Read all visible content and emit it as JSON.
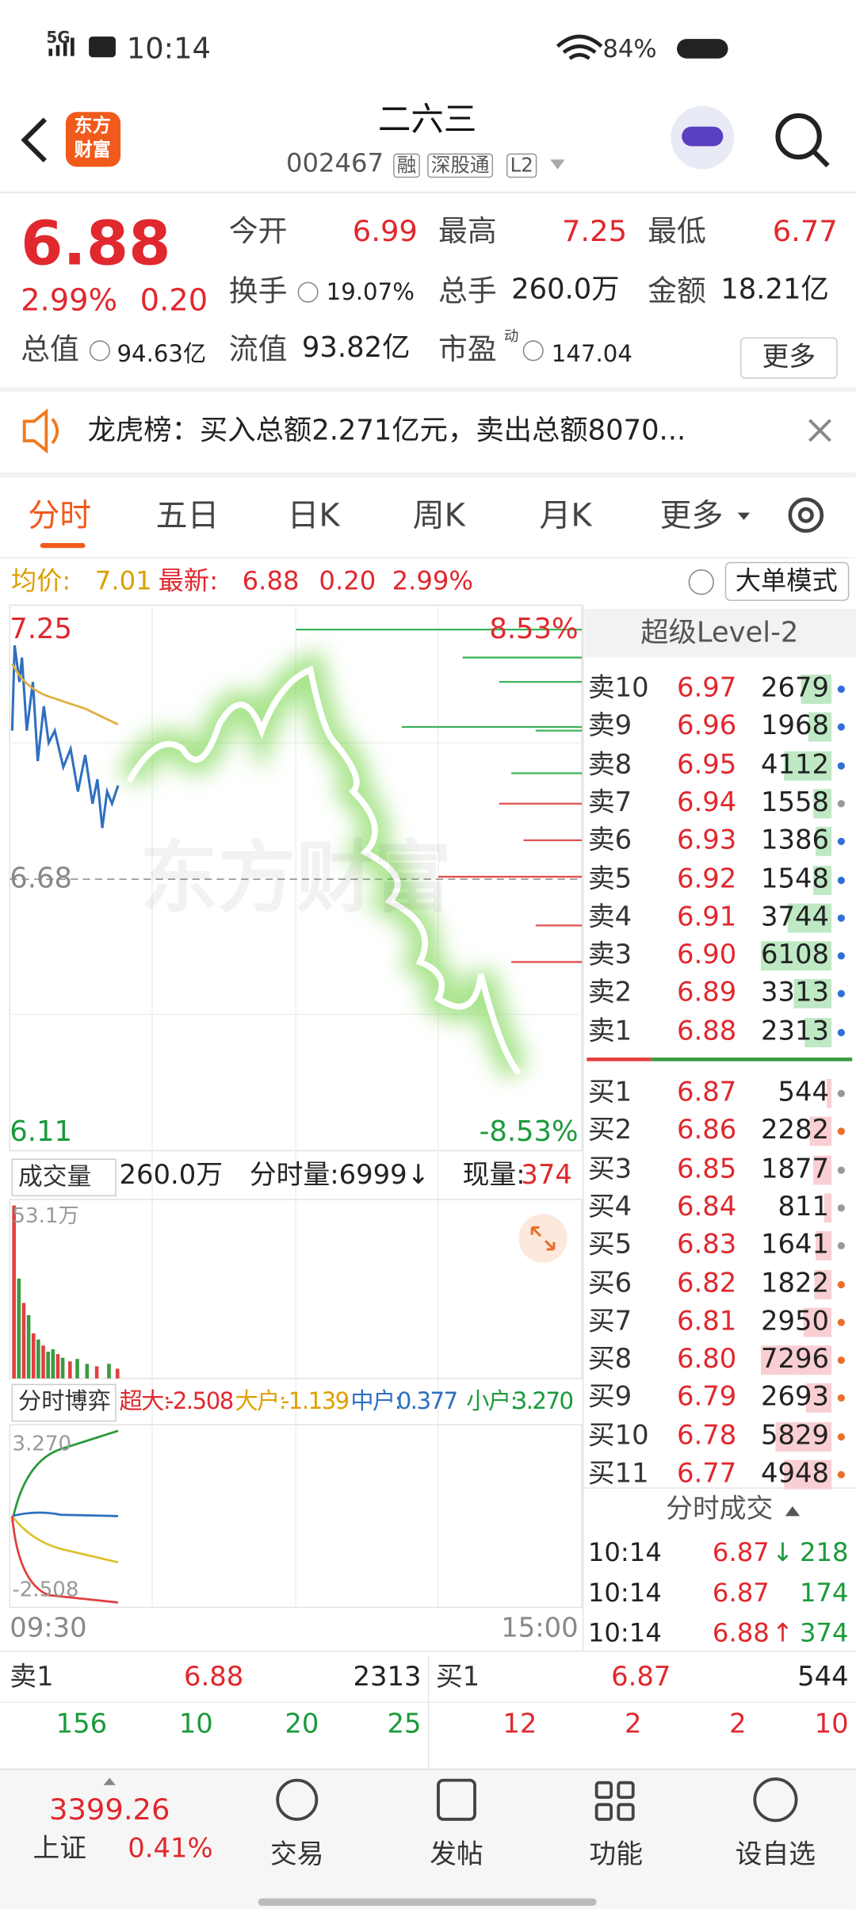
{
  "status_bar": {
    "network": "5G",
    "time": "10:14",
    "battery": "84%"
  },
  "header": {
    "logo_top": "东方",
    "logo_bottom": "财富",
    "title": "二六三",
    "code": "002467",
    "tags": [
      "融",
      "深股通",
      "L2"
    ]
  },
  "quote": {
    "price": "6.88",
    "change_pct": "2.99%",
    "change": "0.20",
    "fields": [
      {
        "label": "今开",
        "value": "6.99"
      },
      {
        "label": "最高",
        "value": "7.25"
      },
      {
        "label": "最低",
        "value": "6.77"
      },
      {
        "label": "换手",
        "value": "19.07%"
      },
      {
        "label": "总手",
        "value": "260.0万"
      },
      {
        "label": "金额",
        "value": "18.21亿"
      },
      {
        "label": "总值",
        "value": "94.63亿"
      },
      {
        "label": "流值",
        "value": "93.82亿"
      },
      {
        "label": "市盈",
        "sup": "动",
        "value": "147.04"
      }
    ],
    "more": "更多"
  },
  "banner": {
    "text": "龙虎榜：买入总额2.271亿元，卖出总额8070..."
  },
  "tabs": [
    "分时",
    "五日",
    "日K",
    "周K",
    "月K",
    "更多"
  ],
  "info_bar": {
    "avg_label": "均价:",
    "avg": "7.01",
    "latest_label": "最新:",
    "latest": "6.88",
    "change": "0.20",
    "change_pct": "2.99%",
    "mode": "大单模式"
  },
  "price_chart": {
    "high": "7.25",
    "high_pct": "8.53%",
    "prev_close": "6.68",
    "low": "6.11",
    "low_pct": "-8.53%",
    "watermark": "东方财富"
  },
  "volume_bar": {
    "selector": "成交量",
    "total": "260.0万",
    "tick_volume": "分时量:6999↓",
    "current_label": "现量:",
    "current": "374"
  },
  "volume_chart": {
    "max": "53.1万"
  },
  "flow_bar": {
    "selector": "分时博弈",
    "items": [
      {
        "label": "超大:",
        "value": "-2.508"
      },
      {
        "label": "大户:",
        "value": "-1.139"
      },
      {
        "label": "中户:",
        "value": "0.377"
      },
      {
        "label": "小户:",
        "value": "3.270"
      }
    ]
  },
  "flow_chart": {
    "max": "3.270",
    "min": "-2.508"
  },
  "time_axis": [
    "09:30",
    "15:00"
  ],
  "level2": {
    "title": "超级Level-2",
    "asks": [
      {
        "label": "卖10",
        "price": "6.97",
        "volume": 2679,
        "dot": "#2f6fd6"
      },
      {
        "label": "卖9",
        "price": "6.96",
        "volume": 1968,
        "dot": "#2f6fd6"
      },
      {
        "label": "卖8",
        "price": "6.95",
        "volume": 4112,
        "dot": "#2f6fd6"
      },
      {
        "label": "卖7",
        "price": "6.94",
        "volume": 1558,
        "dot": "#999999"
      },
      {
        "label": "卖6",
        "price": "6.93",
        "volume": 1386,
        "dot": "#2f6fd6"
      },
      {
        "label": "卖5",
        "price": "6.92",
        "volume": 1548,
        "dot": "#2f6fd6"
      },
      {
        "label": "卖4",
        "price": "6.91",
        "volume": 3744,
        "dot": "#2f6fd6"
      },
      {
        "label": "卖3",
        "price": "6.90",
        "volume": 6108,
        "dot": "#2f6fd6"
      },
      {
        "label": "卖2",
        "price": "6.89",
        "volume": 3313,
        "dot": "#2f6fd6"
      },
      {
        "label": "卖1",
        "price": "6.88",
        "volume": 2313,
        "dot": "#2f6fd6"
      }
    ],
    "bids": [
      {
        "label": "买1",
        "price": "6.87",
        "volume": 544,
        "dot": "#999999"
      },
      {
        "label": "买2",
        "price": "6.86",
        "volume": 2282,
        "dot": "#e8702a"
      },
      {
        "label": "买3",
        "price": "6.85",
        "volume": 1877,
        "dot": "#999999"
      },
      {
        "label": "买4",
        "price": "6.84",
        "volume": 811,
        "dot": "#999999"
      },
      {
        "label": "买5",
        "price": "6.83",
        "volume": 1641,
        "dot": "#999999"
      },
      {
        "label": "买6",
        "price": "6.82",
        "volume": 1822,
        "dot": "#e8702a"
      },
      {
        "label": "买7",
        "price": "6.81",
        "volume": 2950,
        "dot": "#e8702a"
      },
      {
        "label": "买8",
        "price": "6.80",
        "volume": 7296,
        "dot": "#e8702a"
      },
      {
        "label": "买9",
        "price": "6.79",
        "volume": 2693,
        "dot": "#e8702a"
      },
      {
        "label": "买10",
        "price": "6.78",
        "volume": 5829,
        "dot": "#e8702a"
      },
      {
        "label": "买11",
        "price": "6.77",
        "volume": 4948,
        "dot": "#e8702a"
      }
    ],
    "ticks_title": "分时成交",
    "ticks": [
      {
        "time": "10:14",
        "price": "6.87",
        "dir": "↓",
        "volume": "218"
      },
      {
        "time": "10:14",
        "price": "6.87",
        "volume": "174"
      },
      {
        "time": "10:14",
        "price": "6.88",
        "dir": "↑",
        "volume": "374"
      }
    ]
  },
  "bottom_table": {
    "ask": {
      "label": "卖1",
      "price": "6.88",
      "volume": "2313"
    },
    "bid": {
      "label": "买1",
      "price": "6.87",
      "volume": "544"
    },
    "ask_row": [
      "156",
      "10",
      "20",
      "25"
    ],
    "bid_row": [
      "12",
      "2",
      "2",
      "10"
    ]
  },
  "nav": {
    "index_value": "3399.26",
    "index_name": "上证",
    "index_pct": "0.41%",
    "items": [
      "交易",
      "发帖",
      "功能",
      "设自选"
    ]
  }
}
